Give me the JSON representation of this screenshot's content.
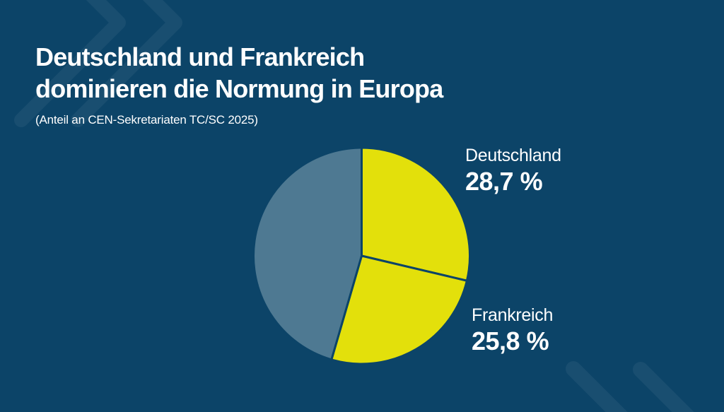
{
  "colors": {
    "background": "#0c4468",
    "accent_yellow": "#e3e00b",
    "slate_blue": "#4e7992",
    "text": "#ffffff",
    "watermark": "rgba(255,255,255,0.055)"
  },
  "header": {
    "title_line1": "Deutschland und Frankreich",
    "title_line2": "dominieren die Normung in Europa",
    "subtitle": "(Anteil an CEN-Sekretariaten TC/SC 2025)"
  },
  "chart_data": {
    "type": "pie",
    "title": "Deutschland und Frankreich dominieren die Normung in Europa",
    "subtitle": "(Anteil an CEN-Sekretariaten TC/SC 2025)",
    "unit": "%",
    "start_angle_deg": 0,
    "direction": "clockwise",
    "legend_position": "labels-right-of-pie",
    "slices": [
      {
        "label": "Deutschland",
        "value": 28.7,
        "display": "28,7 %",
        "color": "#e3e00b"
      },
      {
        "label": "Frankreich",
        "value": 25.8,
        "display": "25,8 %",
        "color": "#e3e00b"
      },
      {
        "label": "",
        "value": 45.5,
        "display": "",
        "color": "#4e7992"
      }
    ]
  }
}
